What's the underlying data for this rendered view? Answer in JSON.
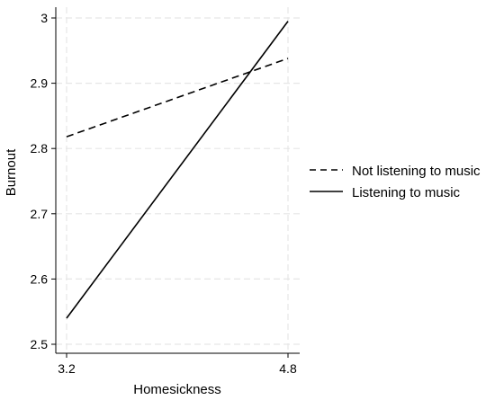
{
  "chart_data": {
    "type": "line",
    "xlabel": "Homesickness",
    "ylabel": "Burnout",
    "x": [
      3.2,
      4.8
    ],
    "xlim": [
      3.2,
      4.8
    ],
    "ylim": [
      2.5,
      3.0
    ],
    "xticks": [
      "3.2",
      "4.8"
    ],
    "yticks": [
      "2.5",
      "2.6",
      "2.7",
      "2.8",
      "2.9",
      "3"
    ],
    "grid": true,
    "legend_position": "right",
    "series": [
      {
        "name": "Not listening to music",
        "values": [
          2.818,
          2.938
        ],
        "line_style": "dashed",
        "color": "#000000"
      },
      {
        "name": "Listening to music",
        "values": [
          2.54,
          2.995
        ],
        "line_style": "solid",
        "color": "#000000"
      }
    ]
  }
}
